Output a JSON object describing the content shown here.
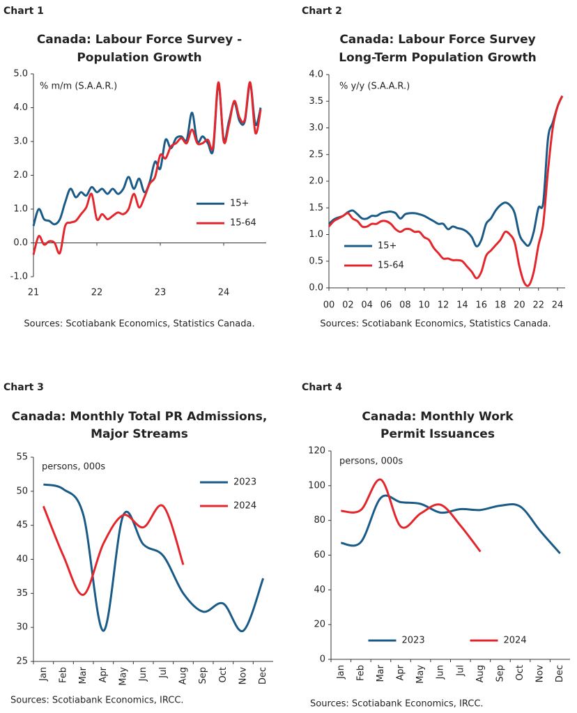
{
  "chart_data": [
    {
      "type": "line",
      "label": "Chart 1",
      "title": [
        "Canada: Labour Force Survey -",
        "Population Growth"
      ],
      "ylabel": "% m/m (S.A.A.R.)",
      "source": "Sources: Scotiabank Economics, Statistics Canada.",
      "x": [
        21,
        21.083,
        21.167,
        21.25,
        21.333,
        21.417,
        21.5,
        21.583,
        21.667,
        21.75,
        21.833,
        21.917,
        22,
        22.083,
        22.167,
        22.25,
        22.333,
        22.417,
        22.5,
        22.583,
        22.667,
        22.75,
        22.833,
        22.917,
        23,
        23.083,
        23.167,
        23.25,
        23.333,
        23.417,
        23.5,
        23.583,
        23.667,
        23.75,
        23.833,
        23.917,
        24,
        24.083,
        24.167,
        24.25,
        24.333,
        24.417,
        24.5,
        24.583
      ],
      "series": [
        {
          "name": "15+",
          "color": "#1a5a86",
          "values": [
            0.5,
            1.0,
            0.7,
            0.65,
            0.55,
            0.7,
            1.2,
            1.6,
            1.35,
            1.5,
            1.4,
            1.65,
            1.5,
            1.6,
            1.45,
            1.6,
            1.45,
            1.6,
            1.95,
            1.6,
            1.9,
            1.5,
            1.8,
            2.4,
            2.2,
            3.05,
            2.8,
            3.1,
            3.15,
            3.05,
            3.85,
            3.0,
            3.15,
            2.95,
            2.75,
            4.7,
            3.05,
            3.6,
            4.15,
            3.6,
            3.6,
            4.7,
            3.5,
            4.0
          ]
        },
        {
          "name": "15-64",
          "color": "#e3262b",
          "values": [
            -0.35,
            0.2,
            -0.05,
            0.05,
            0.0,
            -0.3,
            0.5,
            0.6,
            0.65,
            0.85,
            1.05,
            1.45,
            0.7,
            0.85,
            0.7,
            0.8,
            0.9,
            0.85,
            1.0,
            1.45,
            1.05,
            1.35,
            1.75,
            1.95,
            2.6,
            2.5,
            2.85,
            2.95,
            3.1,
            2.95,
            3.35,
            2.95,
            2.95,
            3.05,
            2.85,
            4.75,
            3.0,
            3.5,
            4.2,
            3.7,
            3.65,
            4.75,
            3.25,
            3.95
          ]
        }
      ],
      "xlim": [
        21,
        24.67
      ],
      "xticks": [
        21,
        22,
        23,
        24
      ],
      "ylim": [
        -1,
        5
      ],
      "yticks": [
        {
          "value": 5,
          "label": "5.0"
        },
        {
          "value": 4,
          "label": "4.0"
        },
        {
          "value": 3,
          "label": "3.0"
        },
        {
          "value": 2,
          "label": "2.0"
        },
        {
          "value": 1,
          "label": "1.0"
        },
        {
          "value": 0,
          "label": "0.0"
        },
        {
          "value": -1,
          "label": "-1.0"
        }
      ],
      "legend": "center right"
    },
    {
      "type": "line",
      "label": "Chart 2",
      "title": [
        "Canada: Labour Force Survey",
        "Long-Term Population Growth"
      ],
      "ylabel": "% y/y (S.A.A.R.)",
      "source": "Sources: Scotiabank Economics, Statistics Canada.",
      "x": [
        2000,
        2000.5,
        2001,
        2001.5,
        2002,
        2002.5,
        2003,
        2003.5,
        2004,
        2004.5,
        2005,
        2005.5,
        2006,
        2006.5,
        2007,
        2007.5,
        2008,
        2008.5,
        2009,
        2009.5,
        2010,
        2010.5,
        2011,
        2011.5,
        2012,
        2012.5,
        2013,
        2013.5,
        2014,
        2014.5,
        2015,
        2015.5,
        2016,
        2016.5,
        2017,
        2017.5,
        2018,
        2018.5,
        2019,
        2019.5,
        2020,
        2020.5,
        2021,
        2021.5,
        2022,
        2022.5,
        2023,
        2023.5,
        2024,
        2024.5
      ],
      "series": [
        {
          "name": "15+",
          "color": "#1a5a86",
          "values": [
            1.2,
            1.28,
            1.32,
            1.35,
            1.42,
            1.45,
            1.38,
            1.3,
            1.3,
            1.35,
            1.35,
            1.4,
            1.42,
            1.43,
            1.4,
            1.3,
            1.38,
            1.4,
            1.4,
            1.38,
            1.35,
            1.3,
            1.25,
            1.2,
            1.2,
            1.1,
            1.15,
            1.12,
            1.1,
            1.05,
            0.95,
            0.78,
            0.9,
            1.2,
            1.3,
            1.45,
            1.55,
            1.6,
            1.55,
            1.4,
            1.0,
            0.85,
            0.8,
            1.05,
            1.5,
            1.6,
            2.8,
            3.1,
            3.4,
            3.6
          ]
        },
        {
          "name": "15-64",
          "color": "#e3262b",
          "values": [
            1.15,
            1.25,
            1.3,
            1.35,
            1.4,
            1.3,
            1.25,
            1.15,
            1.15,
            1.2,
            1.2,
            1.25,
            1.25,
            1.2,
            1.1,
            1.05,
            1.1,
            1.1,
            1.05,
            1.05,
            0.95,
            0.9,
            0.75,
            0.65,
            0.55,
            0.55,
            0.52,
            0.52,
            0.5,
            0.4,
            0.3,
            0.18,
            0.3,
            0.6,
            0.7,
            0.8,
            0.9,
            1.05,
            1.0,
            0.85,
            0.4,
            0.1,
            0.05,
            0.3,
            0.8,
            1.2,
            2.2,
            3.0,
            3.4,
            3.6
          ]
        }
      ],
      "xlim": [
        2000,
        2024.8
      ],
      "xticks": [
        {
          "value": 2000,
          "label": "00"
        },
        {
          "value": 2002,
          "label": "02"
        },
        {
          "value": 2004,
          "label": "04"
        },
        {
          "value": 2006,
          "label": "06"
        },
        {
          "value": 2008,
          "label": "08"
        },
        {
          "value": 2010,
          "label": "10"
        },
        {
          "value": 2012,
          "label": "12"
        },
        {
          "value": 2014,
          "label": "14"
        },
        {
          "value": 2016,
          "label": "16"
        },
        {
          "value": 2018,
          "label": "18"
        },
        {
          "value": 2020,
          "label": "20"
        },
        {
          "value": 2022,
          "label": "22"
        },
        {
          "value": 2024,
          "label": "24"
        }
      ],
      "ylim": [
        0,
        4
      ],
      "yticks": [
        {
          "value": 4,
          "label": "4.0"
        },
        3.5,
        {
          "value": 3,
          "label": "3.0"
        },
        2.5,
        {
          "value": 2,
          "label": "2.0"
        },
        1.5,
        {
          "value": 1,
          "label": "1.0"
        },
        0.5,
        {
          "value": 0,
          "label": "0.0"
        }
      ],
      "legend": "lower left"
    },
    {
      "type": "line",
      "label": "Chart 3",
      "title": [
        "Canada: Monthly Total PR Admissions,",
        "Major Streams"
      ],
      "ylabel": "persons, 000s",
      "source": "Sources: Scotiabank Economics, IRCC.",
      "categories": [
        "Jan",
        "Feb",
        "Mar",
        "Apr",
        "May",
        "Jun",
        "Jul",
        "Aug",
        "Sep",
        "Oct",
        "Nov",
        "Dec"
      ],
      "series": [
        {
          "name": "2023",
          "color": "#1a5a86",
          "values": [
            51,
            50.3,
            46.5,
            29.5,
            46.5,
            42.2,
            40.5,
            35,
            32.3,
            33.5,
            29.5,
            37.2
          ]
        },
        {
          "name": "2024",
          "color": "#e3262b",
          "values": [
            47.8,
            40.5,
            34.8,
            42.3,
            46.5,
            44.7,
            47.8,
            39.2,
            null,
            null,
            null,
            null
          ]
        }
      ],
      "ylim": [
        25,
        55
      ],
      "yticks": [
        55,
        50,
        45,
        40,
        35,
        30,
        25
      ],
      "legend": "upper right"
    },
    {
      "type": "line",
      "label": "Chart 4",
      "title": [
        "Canada: Monthly Work",
        "Permit Issuances"
      ],
      "ylabel": "persons, 000s",
      "source": "Sources: Scotiabank Economics, IRCC.",
      "categories": [
        "Jan",
        "Feb",
        "Mar",
        "Apr",
        "May",
        "Jun",
        "Jul",
        "Aug",
        "Sep",
        "Oct",
        "Nov",
        "Dec"
      ],
      "series": [
        {
          "name": "2023",
          "color": "#1a5a86",
          "values": [
            67,
            67.5,
            93,
            90.5,
            89.5,
            84.5,
            86.5,
            86,
            88.5,
            88,
            74,
            61
          ]
        },
        {
          "name": "2024",
          "color": "#e3262b",
          "values": [
            85.5,
            86,
            103.5,
            76.5,
            84,
            89,
            77,
            62,
            null,
            null,
            null,
            null
          ]
        }
      ],
      "ylim": [
        0,
        120
      ],
      "yticks": [
        120,
        100,
        80,
        60,
        40,
        20,
        0
      ],
      "legend": "lower center"
    }
  ]
}
